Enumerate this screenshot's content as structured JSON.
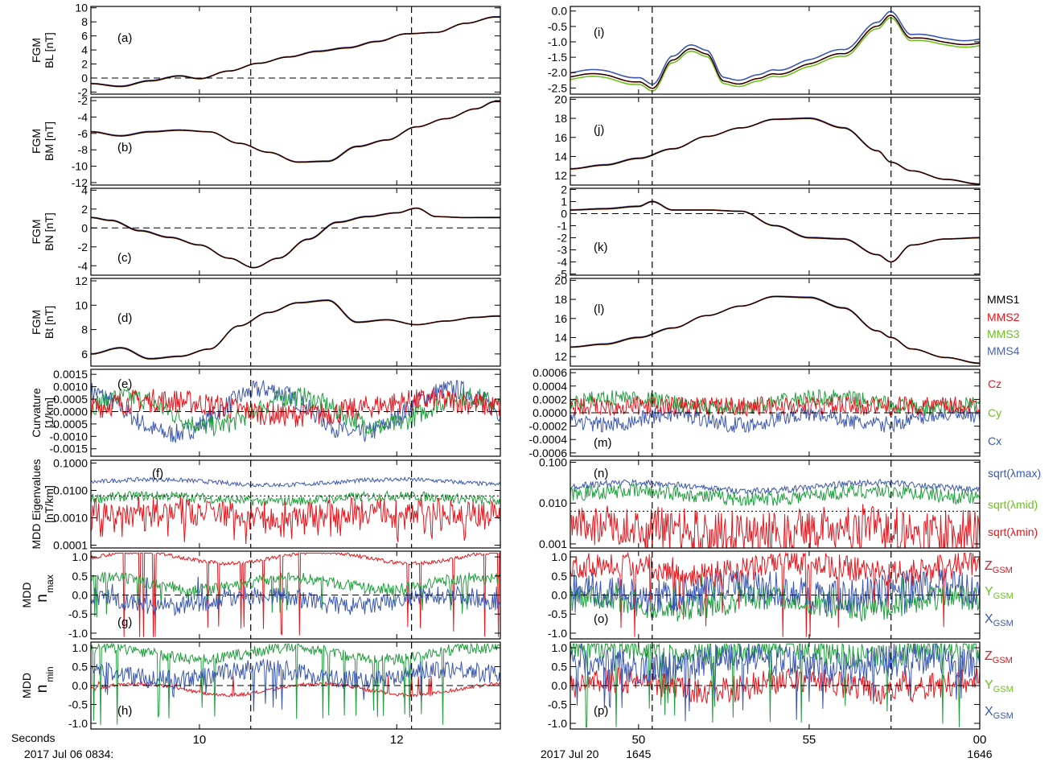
{
  "figure": {
    "left": {
      "x_title": "Seconds",
      "date_label": "2017 Jul 06 0834:",
      "x_range": [
        8.9,
        13.05
      ],
      "xticks": [
        {
          "v": 10,
          "label": "10"
        },
        {
          "v": 12,
          "label": "12"
        }
      ],
      "vlines": [
        10.52,
        12.15
      ]
    },
    "right": {
      "date_label": "2017 Jul 20",
      "x_range": [
        48,
        60
      ],
      "xticks": [
        {
          "v": 50,
          "label": "50",
          "sub": "1645"
        },
        {
          "v": 55,
          "label": "55",
          "sub": ""
        },
        {
          "v": 60,
          "label": "00",
          "sub": "1646"
        }
      ],
      "vlines": [
        50.4,
        57.4
      ]
    }
  },
  "legend_spacecraft": [
    {
      "label": "MMS1",
      "color": "#000000"
    },
    {
      "label": "MMS2",
      "color": "#e8141b"
    },
    {
      "label": "MMS3",
      "color": "#6cc21d"
    },
    {
      "label": "MMS4",
      "color": "#4a62ad"
    }
  ],
  "colors": {
    "red": "#e8141b",
    "green": "#1f9e3c",
    "blue": "#3b57b0",
    "lime": "#6cc21d"
  },
  "panels": [
    {
      "id": "a",
      "ylabel": [
        "FGM",
        "BL [nT]"
      ],
      "ylim": [
        -2.3,
        10.2
      ],
      "ticks": [
        "-2",
        "0",
        "2",
        "4",
        "6",
        "8",
        "10"
      ],
      "tickvals": [
        -2,
        0,
        2,
        4,
        6,
        8,
        10
      ],
      "zero": true
    },
    {
      "id": "b",
      "ylabel": [
        "FGM",
        "BM [nT]"
      ],
      "ylim": [
        -12.3,
        -1.6
      ],
      "ticks": [
        "-12",
        "-10",
        "-8",
        "-6",
        "-4",
        "-2"
      ],
      "tickvals": [
        -12,
        -10,
        -8,
        -6,
        -4,
        -2
      ],
      "zero": false
    },
    {
      "id": "c",
      "ylabel": [
        "FGM",
        "BN [nT]"
      ],
      "ylim": [
        -5,
        4.2
      ],
      "ticks": [
        "-4",
        "-2",
        "0",
        "2",
        "4"
      ],
      "tickvals": [
        -4,
        -2,
        0,
        2,
        4
      ],
      "zero": true
    },
    {
      "id": "d",
      "ylabel": [
        "FGM",
        "Bt [nT]"
      ],
      "ylim": [
        5,
        12.2
      ],
      "ticks": [
        "6",
        "8",
        "10",
        "12"
      ],
      "tickvals": [
        6,
        8,
        10,
        12
      ],
      "zero": false
    },
    {
      "id": "e",
      "ylabel": [
        "Curvature",
        "[1/km]"
      ],
      "ylim": [
        -0.0018,
        0.0017
      ],
      "ticks": [
        "-0.0015",
        "-0.0010",
        "-0.0005",
        "0.0000",
        "0.0005",
        "0.0010",
        "0.0015"
      ],
      "tickvals": [
        -0.0015,
        -0.001,
        -0.0005,
        0,
        0.0005,
        0.001,
        0.0015
      ],
      "zero": true
    },
    {
      "id": "f",
      "ylabel": [
        "MDD Eigenvalues",
        "[nT/km]"
      ],
      "log": true,
      "ylim": [
        -4.1,
        -0.9
      ],
      "ticks": [
        "0.0001",
        "0.0010",
        "0.0100",
        "0.1000"
      ],
      "tickvals": [
        -4,
        -3,
        -2,
        -1
      ],
      "zero": false
    },
    {
      "id": "g",
      "ylabel": [
        "MDD",
        "n",
        "max"
      ],
      "ylim": [
        -1.15,
        1.15
      ],
      "ticks": [
        "-1.0",
        "-0.5",
        "0.0",
        "0.5",
        "1.0"
      ],
      "tickvals": [
        -1,
        -0.5,
        0,
        0.5,
        1
      ],
      "zero": true
    },
    {
      "id": "h",
      "ylabel": [
        "MDD",
        "n",
        "min"
      ],
      "ylim": [
        -1.15,
        1.15
      ],
      "ticks": [
        "-1.0",
        "-0.5",
        "0.0",
        "0.5",
        "1.0"
      ],
      "tickvals": [
        -1,
        -0.5,
        0,
        0.5,
        1
      ],
      "zero": true
    },
    {
      "id": "i",
      "ylim": [
        -2.7,
        0.15
      ],
      "ticks": [
        "-2.5",
        "-2.0",
        "-1.5",
        "-1.0",
        "-0.5",
        "0.0"
      ],
      "tickvals": [
        -2.5,
        -2,
        -1.5,
        -1,
        -0.5,
        0
      ],
      "zero": false
    },
    {
      "id": "j",
      "ylim": [
        11,
        20.2
      ],
      "ticks": [
        "12",
        "14",
        "16",
        "18",
        "20"
      ],
      "tickvals": [
        12,
        14,
        16,
        18,
        20
      ],
      "zero": false
    },
    {
      "id": "k",
      "ylim": [
        -5.1,
        2.1
      ],
      "ticks": [
        "-5",
        "-4",
        "-3",
        "-2",
        "-1",
        "0",
        "1",
        "2"
      ],
      "tickvals": [
        -5,
        -4,
        -3,
        -2,
        -1,
        0,
        1,
        2
      ],
      "zero": true
    },
    {
      "id": "l",
      "ylim": [
        11,
        20.2
      ],
      "ticks": [
        "12",
        "14",
        "16",
        "18",
        "20"
      ],
      "tickvals": [
        12,
        14,
        16,
        18,
        20
      ],
      "zero": false
    },
    {
      "id": "m",
      "ylim": [
        -0.00065,
        0.00065
      ],
      "ticks": [
        "-0.0006",
        "-0.0004",
        "-0.0002",
        "0.0000",
        "0.0002",
        "0.0004",
        "0.0006"
      ],
      "tickvals": [
        -0.0006,
        -0.0004,
        -0.0002,
        0,
        0.0002,
        0.0004,
        0.0006
      ],
      "zero": true
    },
    {
      "id": "n",
      "log": true,
      "ylim": [
        -3.1,
        -0.95
      ],
      "ticks": [
        "0.001",
        "0.010",
        "0.100"
      ],
      "tickvals": [
        -3,
        -2,
        -1
      ],
      "zero": false
    },
    {
      "id": "o",
      "ylim": [
        -1.15,
        1.15
      ],
      "ticks": [
        "-1.0",
        "-0.5",
        "0.0",
        "0.5",
        "1.0"
      ],
      "tickvals": [
        -1,
        -0.5,
        0,
        0.5,
        1
      ],
      "zero": true
    },
    {
      "id": "p",
      "ylim": [
        -1.15,
        1.15
      ],
      "ticks": [
        "-1.0",
        "-0.5",
        "0.0",
        "0.5",
        "1.0"
      ],
      "tickvals": [
        -1,
        -0.5,
        0,
        0.5,
        1
      ],
      "zero": true
    }
  ],
  "side_legends": {
    "m": [
      {
        "label": "Cz",
        "color": "#e8141b"
      },
      {
        "label": "Cy",
        "color": "#6cc21d"
      },
      {
        "label": "Cx",
        "color": "#3b57b0"
      }
    ],
    "n": [
      {
        "label": "sqrt(λmax)",
        "color": "#3b57b0"
      },
      {
        "label": "sqrt(λmid)",
        "color": "#6cc21d"
      },
      {
        "label": "sqrt(λmin)",
        "color": "#e8141b"
      }
    ],
    "gsm": [
      {
        "label": "Z",
        "sub": "GSM",
        "color": "#e8141b"
      },
      {
        "label": "Y",
        "sub": "GSM",
        "color": "#6cc21d"
      },
      {
        "label": "X",
        "sub": "GSM",
        "color": "#3b57b0"
      }
    ]
  },
  "chart_data": [
    {
      "type": "line",
      "panel": "a",
      "ylabel": "FGM BL [nT]",
      "x": [
        8.9,
        9.2,
        9.5,
        9.8,
        10.0,
        10.3,
        10.6,
        10.9,
        11.2,
        11.5,
        11.8,
        12.1,
        12.4,
        12.7,
        13.0
      ],
      "series": [
        {
          "name": "MMS1",
          "values": [
            -0.8,
            -1.2,
            -0.4,
            0.3,
            -0.1,
            1.0,
            2.1,
            3.0,
            3.8,
            4.3,
            5.2,
            6.3,
            6.5,
            7.8,
            8.7
          ]
        }
      ]
    },
    {
      "type": "line",
      "panel": "b",
      "ylabel": "FGM BM [nT]",
      "x": [
        8.9,
        9.2,
        9.5,
        9.8,
        10.1,
        10.4,
        10.7,
        11.0,
        11.3,
        11.6,
        11.9,
        12.2,
        12.5,
        12.8,
        13.0
      ],
      "series": [
        {
          "name": "MMS1",
          "values": [
            -5.8,
            -6.3,
            -5.8,
            -5.6,
            -5.8,
            -7.2,
            -8.3,
            -9.5,
            -9.4,
            -7.6,
            -6.8,
            -5.2,
            -4.2,
            -3.0,
            -2.1
          ]
        }
      ]
    },
    {
      "type": "line",
      "panel": "c",
      "ylabel": "FGM BN [nT]",
      "x": [
        8.9,
        9.1,
        9.4,
        9.7,
        10.0,
        10.3,
        10.55,
        10.8,
        11.1,
        11.4,
        11.7,
        12.0,
        12.2,
        12.4,
        12.7,
        13.0
      ],
      "series": [
        {
          "name": "MMS1",
          "values": [
            1.1,
            0.8,
            -0.3,
            -1.0,
            -1.8,
            -3.2,
            -4.2,
            -3.2,
            -1.2,
            0.6,
            1.2,
            1.6,
            2.1,
            1.2,
            1.1,
            1.1
          ]
        }
      ]
    },
    {
      "type": "line",
      "panel": "d",
      "ylabel": "FGM Bt [nT]",
      "x": [
        8.9,
        9.2,
        9.5,
        9.8,
        10.1,
        10.4,
        10.7,
        11.0,
        11.3,
        11.6,
        11.9,
        12.2,
        12.5,
        12.8,
        13.0
      ],
      "series": [
        {
          "name": "MMS1",
          "values": [
            6.0,
            6.5,
            5.6,
            5.8,
            6.4,
            8.3,
            9.4,
            10.2,
            10.4,
            8.6,
            8.8,
            8.4,
            8.7,
            9.0,
            9.1
          ]
        }
      ]
    },
    {
      "type": "line",
      "panel": "e",
      "ylabel": "Curvature [1/km]",
      "series": [
        {
          "name": "Cx",
          "values_approx": "-0.0010 to 0.0013"
        },
        {
          "name": "Cy",
          "values_approx": "-0.0008 to 0.0009"
        },
        {
          "name": "Cz",
          "values_approx": "-0.0010 to 0.0010"
        }
      ]
    },
    {
      "type": "line",
      "panel": "f",
      "ylabel": "MDD Eigenvalues [nT/km]",
      "yscale": "log",
      "series": [
        {
          "name": "sqrt(λmax)",
          "values_approx": "~0.02"
        },
        {
          "name": "sqrt(λmid)",
          "values_approx": "~0.005"
        },
        {
          "name": "sqrt(λmin)",
          "values_approx": "0.0001–0.003"
        }
      ]
    },
    {
      "type": "line",
      "panel": "i",
      "x": [
        48,
        49,
        50,
        50.4,
        51,
        51.5,
        52,
        52.5,
        53,
        53.5,
        54,
        55,
        56,
        57,
        57.4,
        58,
        59,
        60
      ],
      "series": [
        {
          "name": "MMS1",
          "values": [
            -2.1,
            -2.0,
            -2.3,
            -2.5,
            -1.5,
            -1.2,
            -1.4,
            -2.2,
            -2.3,
            -2.2,
            -2.0,
            -1.7,
            -1.3,
            -0.5,
            -0.1,
            -0.8,
            -1.0,
            -1.0
          ]
        }
      ]
    },
    {
      "type": "line",
      "panel": "j",
      "x": [
        48,
        49,
        50,
        51,
        52,
        53,
        54,
        55,
        56,
        57,
        57.4,
        58,
        59,
        60
      ],
      "series": [
        {
          "name": "MMS1",
          "values": [
            12.7,
            13.1,
            13.8,
            14.8,
            16.1,
            17.0,
            17.9,
            18.0,
            17.0,
            14.6,
            13.4,
            12.5,
            11.6,
            11.1
          ]
        }
      ]
    },
    {
      "type": "line",
      "panel": "k",
      "x": [
        48,
        49,
        50,
        50.4,
        51,
        52,
        53,
        54,
        55,
        56,
        57,
        57.4,
        58,
        59,
        60
      ],
      "series": [
        {
          "name": "MMS1",
          "values": [
            0.3,
            0.4,
            0.6,
            1.0,
            0.3,
            0.3,
            0.2,
            -1.0,
            -2.0,
            -2.1,
            -3.4,
            -4.0,
            -2.6,
            -2.1,
            -2.0
          ]
        }
      ]
    },
    {
      "type": "line",
      "panel": "l",
      "x": [
        48,
        49,
        50,
        51,
        52,
        53,
        54,
        55,
        56,
        57,
        57.4,
        58,
        59,
        60
      ],
      "series": [
        {
          "name": "MMS1",
          "values": [
            13.0,
            13.3,
            14.0,
            15.0,
            16.3,
            17.3,
            18.3,
            18.2,
            17.1,
            14.7,
            14.0,
            12.8,
            11.9,
            11.3
          ]
        }
      ]
    }
  ]
}
